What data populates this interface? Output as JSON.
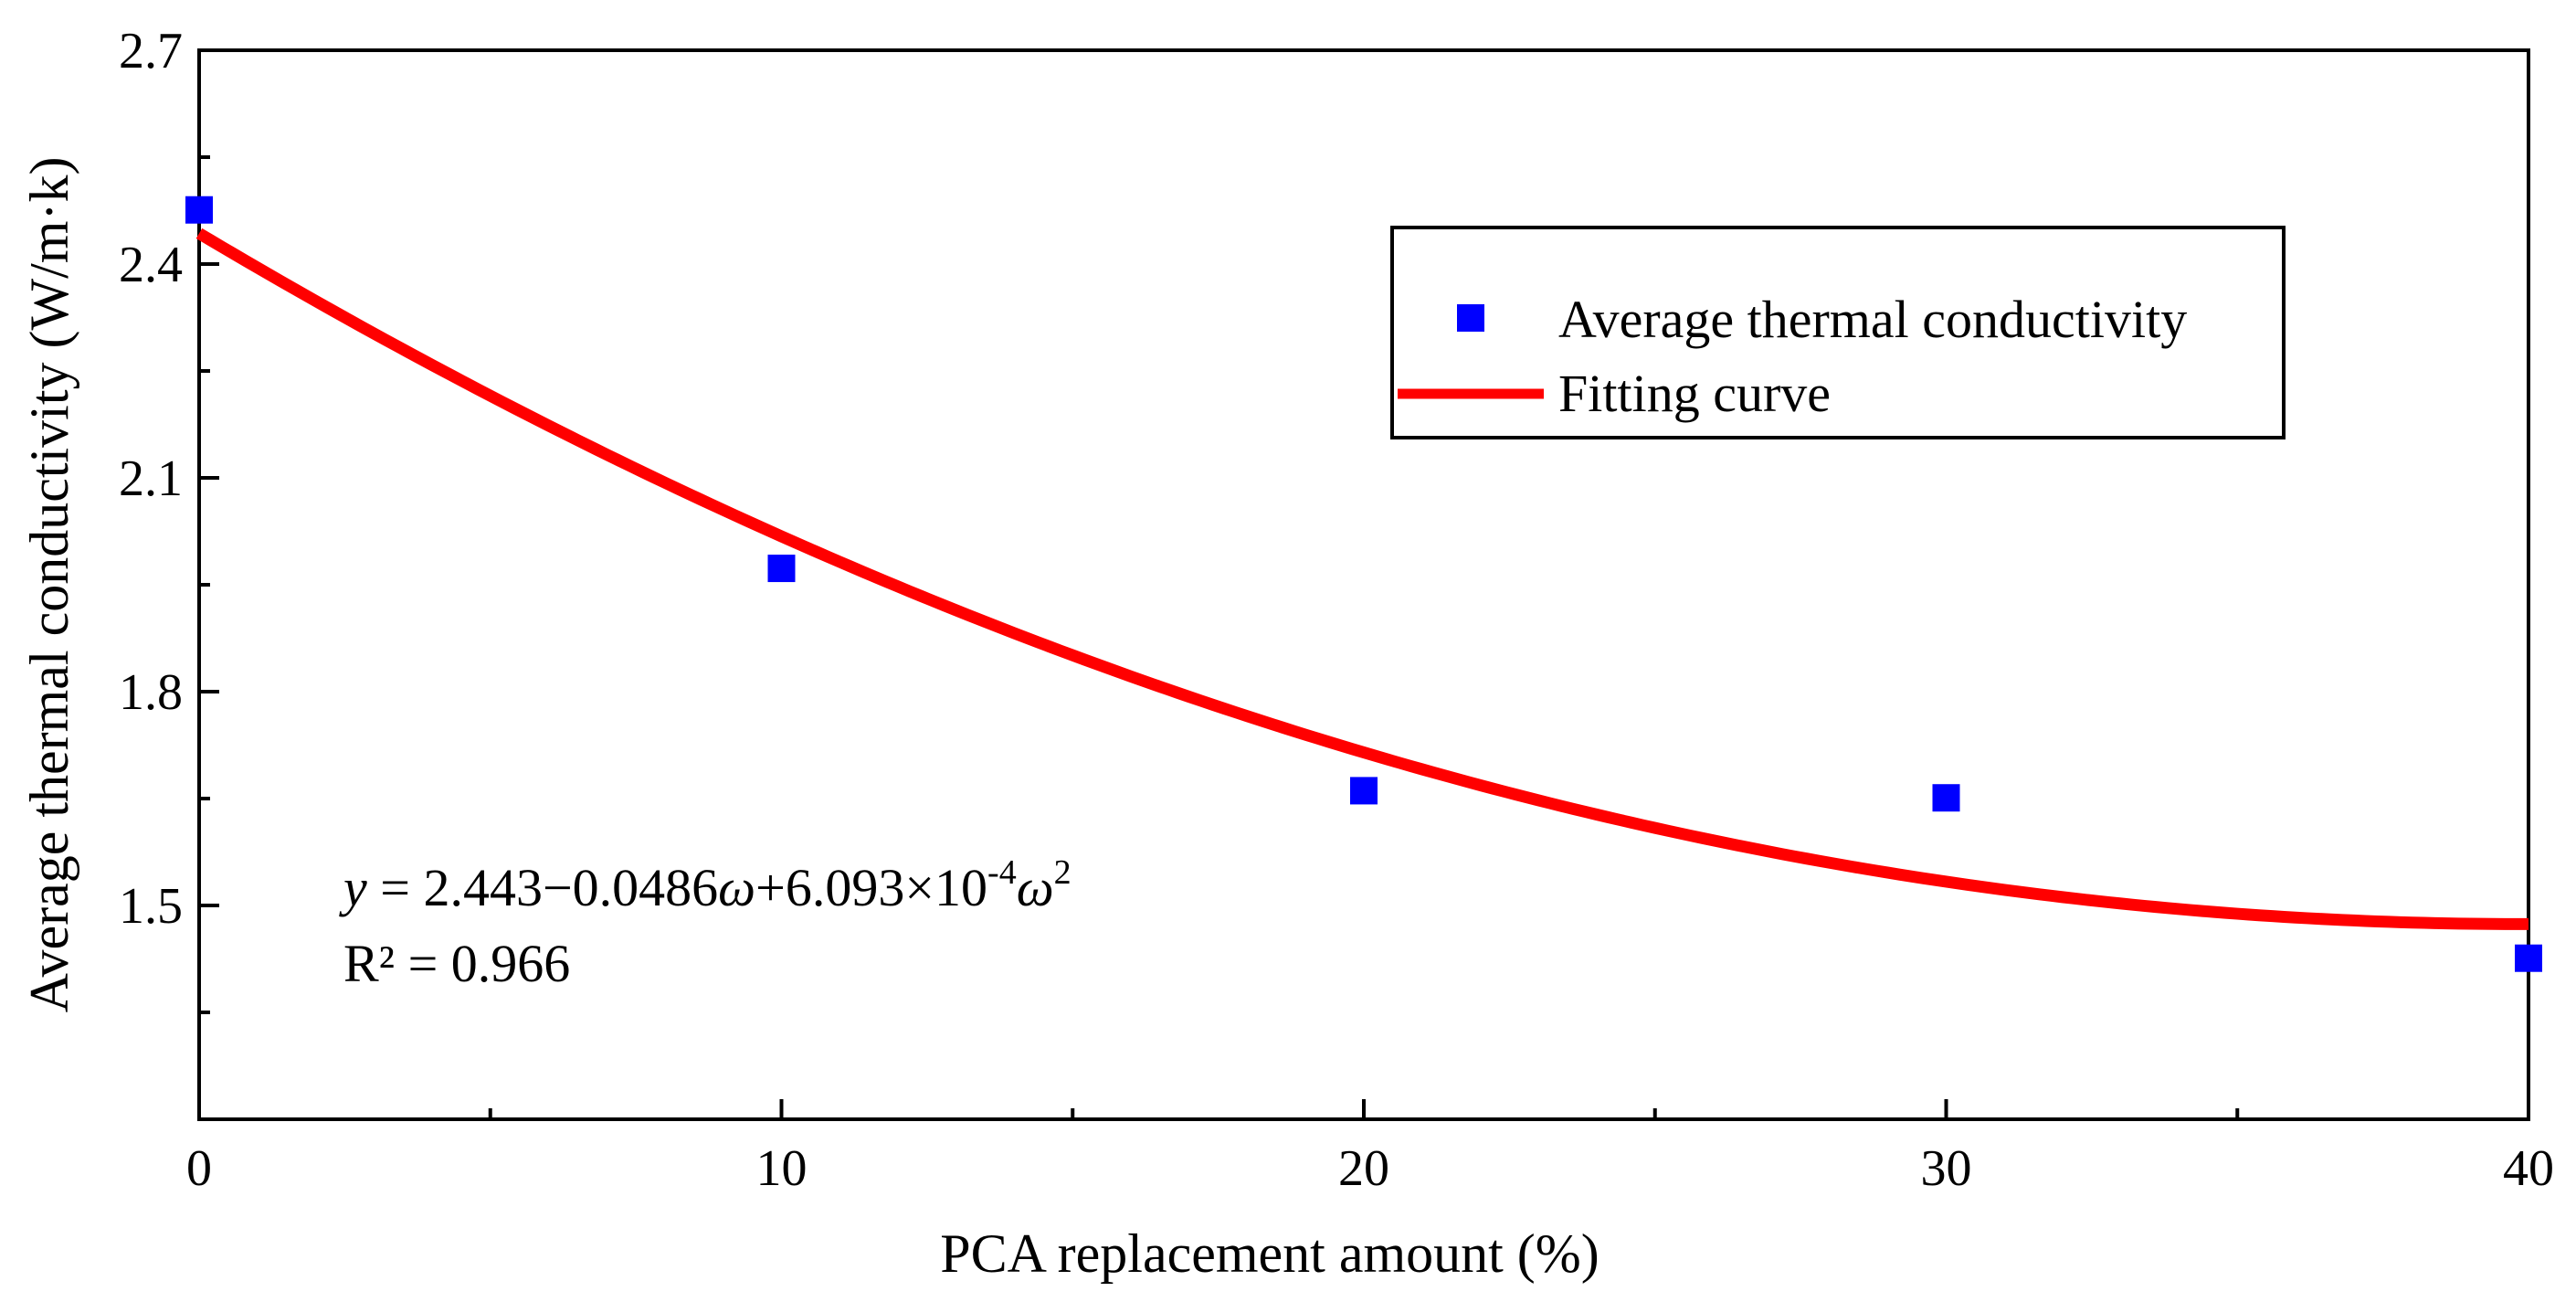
{
  "chart_data": {
    "type": "scatter",
    "title": "",
    "xlabel": "PCA replacement amount (%)",
    "ylabel": "Average thermal conductivity (W/m·k)",
    "xlim": [
      0,
      40
    ],
    "ylim": [
      1.2,
      2.7
    ],
    "x_ticks": [
      0,
      10,
      20,
      30,
      40
    ],
    "x_tick_labels": [
      "0",
      "10",
      "20",
      "30",
      "40"
    ],
    "y_ticks": [
      1.5,
      1.8,
      2.1,
      2.4,
      2.7
    ],
    "y_tick_labels": [
      "1.5",
      "1.8",
      "2.1",
      "2.4",
      "2.7"
    ],
    "series": [
      {
        "name": "Average thermal conductivity",
        "kind": "scatter",
        "marker": "square",
        "color": "#0000ff",
        "x": [
          0,
          10,
          20,
          30,
          40
        ],
        "y": [
          2.476,
          1.973,
          1.661,
          1.651,
          1.426
        ]
      },
      {
        "name": "Fitting curve",
        "kind": "line",
        "color": "#ff0000",
        "fit": {
          "a": 2.443,
          "b": -0.0486,
          "c": 0.0006093
        }
      }
    ],
    "legend": {
      "position": "top-right",
      "entries": [
        "Average thermal conductivity",
        "Fitting curve"
      ]
    },
    "annotations": {
      "equation_var": "y",
      "equation_body": " = 2.443−0.0486",
      "equation_omega": "ω",
      "equation_mid": "+6.093×10",
      "equation_exp": "-4",
      "equation_omega2": "ω",
      "equation_exp2": "2",
      "r_squared": "R² = 0.966"
    }
  }
}
